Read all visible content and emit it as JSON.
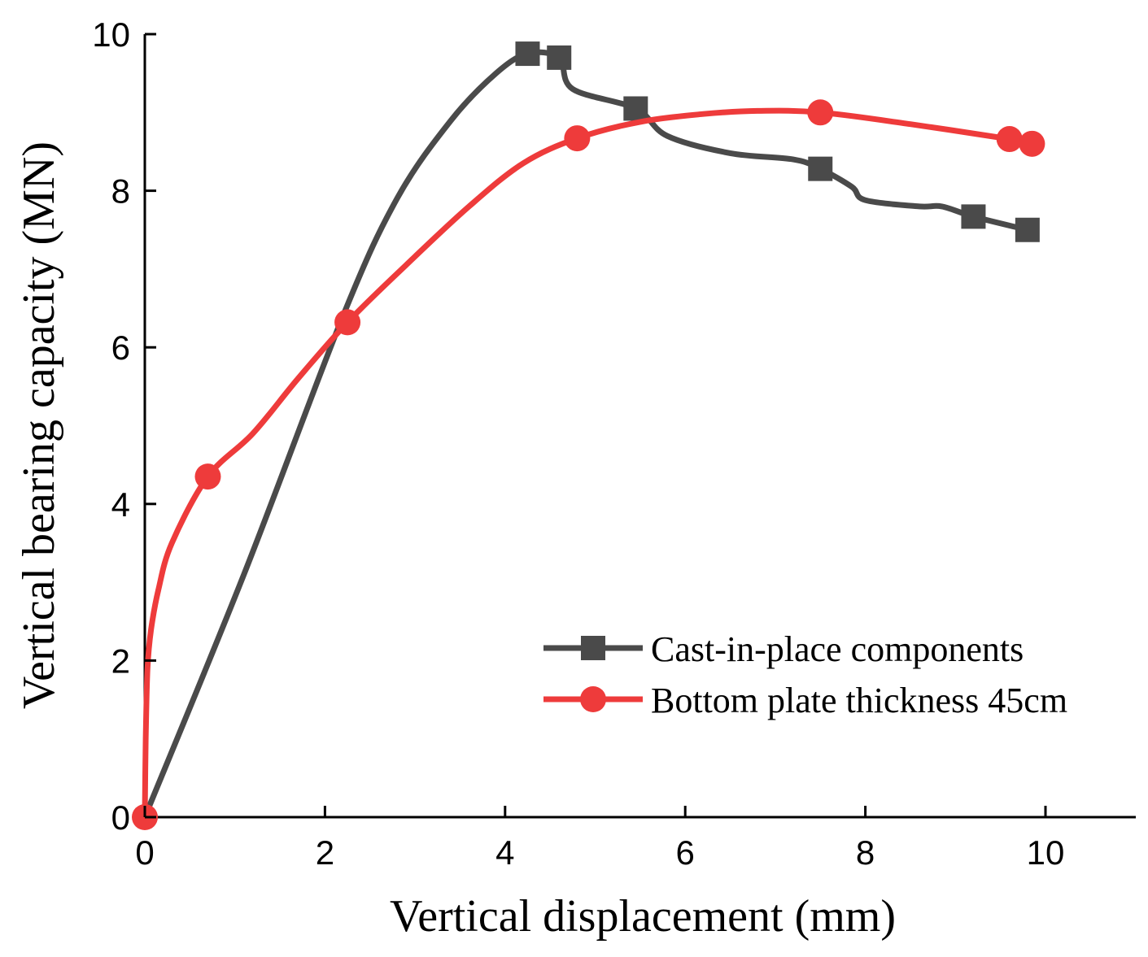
{
  "chart_data": {
    "type": "line",
    "title": "",
    "xlabel": "Vertical displacement (mm)",
    "ylabel": "Vertical bearing capacity (MN)",
    "xlim": [
      0,
      11
    ],
    "ylim": [
      0,
      10
    ],
    "xticks": [
      0,
      2,
      4,
      6,
      8,
      10
    ],
    "yticks": [
      0,
      2,
      4,
      6,
      8,
      10
    ],
    "xtick_labels": [
      "0",
      "2",
      "4",
      "6",
      "8",
      "10"
    ],
    "ytick_labels": [
      "0",
      "2",
      "4",
      "6",
      "8",
      "10"
    ],
    "grid": false,
    "legend_position": "bottom-right",
    "series": [
      {
        "name": "Cast-in-place components",
        "color": "#4a4a4a",
        "marker": "square",
        "x": [
          0,
          1.1,
          2.2,
          2.8,
          3.4,
          3.9,
          4.25,
          4.6,
          4.75,
          5.45,
          5.8,
          6.5,
          7.2,
          7.5,
          7.85,
          8.0,
          8.6,
          8.85,
          9.2,
          9.8
        ],
        "y": [
          0,
          3.1,
          6.4,
          7.9,
          8.9,
          9.5,
          9.75,
          9.7,
          9.3,
          9.05,
          8.7,
          8.48,
          8.4,
          8.28,
          8.05,
          7.88,
          7.8,
          7.8,
          7.67,
          7.5
        ],
        "marker_x": [
          4.25,
          4.6,
          5.45,
          7.5,
          9.2,
          9.8
        ],
        "marker_y": [
          9.75,
          9.7,
          9.05,
          8.28,
          7.67,
          7.5
        ]
      },
      {
        "name": "Bottom plate thickness 45cm",
        "color": "#ee3b3b",
        "marker": "circle",
        "x": [
          0,
          0.01,
          0.03,
          0.07,
          0.15,
          0.3,
          0.7,
          1.2,
          1.7,
          2.25,
          2.9,
          3.6,
          4.2,
          4.8,
          5.5,
          6.2,
          6.8,
          7.5,
          8.5,
          9.6,
          9.85
        ],
        "y": [
          0,
          1.0,
          1.9,
          2.4,
          2.9,
          3.5,
          4.35,
          4.9,
          5.6,
          6.32,
          7.05,
          7.8,
          8.35,
          8.67,
          8.88,
          8.98,
          9.02,
          9.0,
          8.85,
          8.66,
          8.6
        ],
        "marker_x": [
          0,
          0.7,
          2.25,
          4.8,
          7.5,
          9.6,
          9.85
        ],
        "marker_y": [
          0,
          4.35,
          6.32,
          8.67,
          9.0,
          8.66,
          8.6
        ]
      }
    ]
  }
}
